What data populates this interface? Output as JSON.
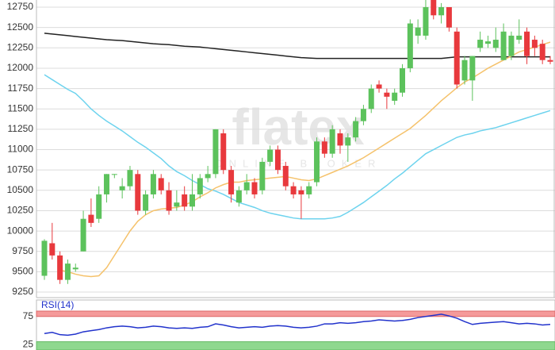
{
  "chart_data": {
    "type": "candlestick",
    "watermark": "flatex",
    "watermark_subtitle": "ONLINE BROKER",
    "up_color": "#5cc25c",
    "down_color": "#e8393d",
    "open": [
      9450,
      9850,
      9700,
      9400,
      9530,
      9750,
      10200,
      10150,
      10450,
      10690,
      10500,
      10550,
      10700,
      10250,
      10450,
      10650,
      10500,
      10300,
      10450,
      10300,
      10450,
      10650,
      10700,
      11200,
      10750,
      10350,
      10500,
      10600,
      10500,
      10850,
      11000,
      10800,
      10550,
      10500,
      10450,
      10600,
      11100,
      10950,
      11200,
      11050,
      11150,
      11350,
      11500,
      11800,
      11700,
      11600,
      11700,
      12000,
      12400,
      12400,
      12900,
      12650,
      12750,
      12450,
      11850,
      11850,
      12250,
      12300,
      12250,
      12100,
      12150,
      12350,
      12450,
      12350,
      12300,
      12100
    ],
    "high": [
      9900,
      10100,
      9750,
      9650,
      9600,
      10250,
      10400,
      10550,
      10700,
      10700,
      10650,
      10800,
      10750,
      10500,
      10750,
      10700,
      10600,
      10500,
      10550,
      10700,
      10700,
      10800,
      11250,
      11250,
      10800,
      10550,
      10700,
      10650,
      10900,
      11050,
      11050,
      10850,
      10600,
      10550,
      10600,
      11150,
      11150,
      11300,
      11250,
      11200,
      11400,
      11550,
      11800,
      11850,
      11750,
      11750,
      12050,
      12600,
      12600,
      12850,
      12950,
      12800,
      12750,
      12500,
      12150,
      12150,
      12450,
      12400,
      12500,
      12550,
      12450,
      12600,
      12500,
      12400,
      12350,
      12150
    ],
    "low": [
      9400,
      9650,
      9350,
      9350,
      9500,
      9750,
      10050,
      10100,
      10350,
      10650,
      10400,
      10500,
      10200,
      10200,
      10400,
      10450,
      10200,
      10250,
      10250,
      10250,
      10400,
      10600,
      10650,
      10700,
      10350,
      10300,
      10450,
      10400,
      10450,
      10800,
      10700,
      10500,
      10400,
      10150,
      10400,
      10550,
      10900,
      10900,
      10950,
      10850,
      11100,
      11300,
      11450,
      11700,
      11500,
      11550,
      11650,
      11950,
      12300,
      12350,
      12600,
      12550,
      12450,
      11750,
      11800,
      11600,
      12200,
      12250,
      12200,
      12100,
      12100,
      12300,
      12050,
      12150,
      12050,
      12050
    ],
    "close": [
      9880,
      9700,
      9400,
      9600,
      9550,
      10150,
      10100,
      10450,
      10700,
      10700,
      10550,
      10750,
      10250,
      10450,
      10700,
      10500,
      10250,
      10350,
      10300,
      10450,
      10650,
      10700,
      11250,
      10750,
      10450,
      10500,
      10600,
      10450,
      10850,
      11000,
      10750,
      10550,
      10450,
      10450,
      10550,
      11100,
      10950,
      11250,
      11050,
      11150,
      11350,
      11500,
      11750,
      11750,
      11650,
      11700,
      12000,
      12550,
      12500,
      12750,
      12650,
      12750,
      12500,
      11800,
      12100,
      12150,
      12350,
      12330,
      12350,
      12450,
      12400,
      12400,
      12150,
      12250,
      12100,
      12080
    ],
    "series": [
      {
        "color": "#222222",
        "values": [
          12430,
          12420,
          12410,
          12400,
          12390,
          12380,
          12370,
          12360,
          12350,
          12345,
          12340,
          12330,
          12320,
          12310,
          12300,
          12295,
          12290,
          12280,
          12270,
          12265,
          12260,
          12250,
          12240,
          12230,
          12220,
          12210,
          12200,
          12190,
          12180,
          12170,
          12160,
          12150,
          12140,
          12130,
          12125,
          12120,
          12120,
          12120,
          12120,
          12120,
          12120,
          12120,
          12120,
          12120,
          12120,
          12120,
          12120,
          12120,
          12120,
          12120,
          12120,
          12120,
          12130,
          12140,
          12140,
          12140,
          12140,
          12140,
          12140,
          12140,
          12140,
          12140,
          12140,
          12140,
          12140,
          12140
        ]
      },
      {
        "color": "#6dd3ee",
        "values": [
          11920,
          11860,
          11800,
          11740,
          11690,
          11600,
          11500,
          11420,
          11350,
          11290,
          11230,
          11160,
          11090,
          11030,
          10960,
          10890,
          10800,
          10730,
          10680,
          10620,
          10570,
          10520,
          10490,
          10450,
          10400,
          10350,
          10320,
          10290,
          10250,
          10220,
          10200,
          10180,
          10160,
          10150,
          10150,
          10150,
          10150,
          10160,
          10180,
          10230,
          10290,
          10350,
          10420,
          10490,
          10560,
          10640,
          10710,
          10790,
          10870,
          10950,
          11000,
          11050,
          11100,
          11150,
          11180,
          11200,
          11230,
          11250,
          11270,
          11300,
          11330,
          11360,
          11390,
          11420,
          11450,
          11480
        ]
      },
      {
        "color": "#f5c26b",
        "values": [
          null,
          null,
          9520,
          9500,
          9470,
          9450,
          9440,
          9450,
          9550,
          9700,
          9850,
          10000,
          10120,
          10200,
          10250,
          10270,
          10280,
          10290,
          10320,
          10360,
          10420,
          10470,
          10530,
          10570,
          10600,
          10600,
          10620,
          10630,
          10640,
          10650,
          10660,
          10670,
          10650,
          10630,
          10620,
          10640,
          10680,
          10720,
          10760,
          10800,
          10850,
          10900,
          10960,
          11020,
          11080,
          11140,
          11200,
          11260,
          11340,
          11420,
          11510,
          11600,
          11680,
          11760,
          11830,
          11880,
          11940,
          12000,
          12050,
          12100,
          12150,
          12200,
          12230,
          12260,
          12290,
          12320
        ]
      }
    ],
    "ylim": [
      9182,
      12838
    ],
    "yticks": [
      {
        "value": 9250,
        "label": "9250"
      },
      9500,
      9750,
      10000,
      10250,
      10500,
      10750,
      11000,
      11250,
      11500,
      11750,
      12000,
      12250,
      12500,
      12750
    ],
    "grid": true,
    "rsi": {
      "label": "RSI(14)",
      "color": "#2233cc",
      "values": [
        45,
        47,
        43,
        42,
        44,
        48,
        50,
        52,
        55,
        57,
        58,
        57,
        55,
        56,
        58,
        57,
        55,
        54,
        55,
        54,
        56,
        57,
        62,
        60,
        57,
        55,
        56,
        57,
        56,
        58,
        59,
        58,
        56,
        55,
        56,
        58,
        62,
        62,
        64,
        63,
        64,
        66,
        67,
        69,
        68,
        67,
        68,
        70,
        73,
        75,
        77,
        79,
        76,
        72,
        66,
        61,
        63,
        64,
        65,
        66,
        64,
        62,
        63,
        62,
        60,
        61
      ],
      "ylim": [
        16,
        104
      ],
      "yticks": [
        25,
        75
      ],
      "upper_color": "#f59a9a",
      "lower_color": "#8fd88f"
    }
  }
}
